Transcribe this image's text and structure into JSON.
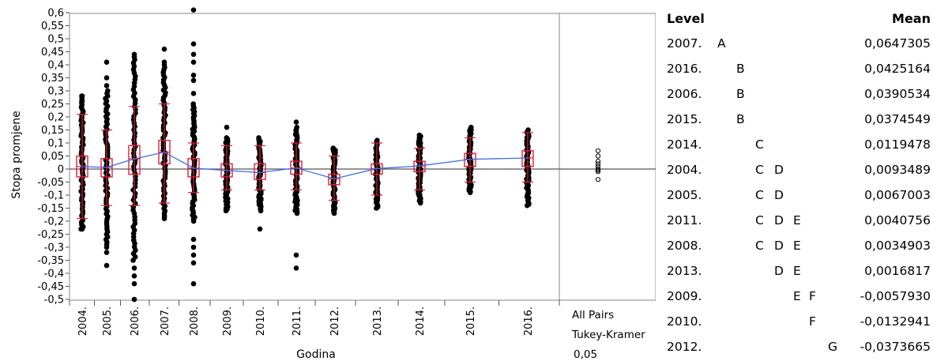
{
  "chart_data": {
    "type": "scatter",
    "subtype": "oneway-analysis",
    "xlabel": "Godina",
    "ylabel": "Stopa promjene",
    "ylim": [
      -0.52,
      0.62
    ],
    "yticks": [
      "0,6",
      "0,55",
      "0,5",
      "0,45",
      "0,4",
      "0,35",
      "0,3",
      "0,25",
      "0,2",
      "0,15",
      "0,1",
      "0,05",
      "0",
      "-0,05",
      "-0,1",
      "-0,15",
      "-0,2",
      "-0,25",
      "-0,3",
      "-0,35",
      "-0,4",
      "-0,45",
      "-0,5"
    ],
    "categories": [
      "2004.",
      "2005.",
      "2006.",
      "2007.",
      "2008.",
      "2009.",
      "2010.",
      "2011.",
      "2012.",
      "2013.",
      "2014.",
      "2015.",
      "2016."
    ],
    "groups": [
      {
        "label": "2004.",
        "mean": 0.0093489,
        "box_low": -0.03,
        "box_high": 0.05,
        "ci_low": -0.19,
        "ci_high": 0.21,
        "data_min": -0.23,
        "data_max": 0.28,
        "outliers": [
          0.28,
          0.26,
          -0.23
        ]
      },
      {
        "label": "2005.",
        "mean": 0.0067003,
        "box_low": -0.03,
        "box_high": 0.04,
        "ci_low": -0.14,
        "ci_high": 0.15,
        "data_min": -0.29,
        "data_max": 0.3,
        "outliers": [
          0.41,
          0.35,
          0.32,
          -0.3,
          -0.32,
          -0.37
        ]
      },
      {
        "label": "2006.",
        "mean": 0.0390534,
        "box_low": -0.02,
        "box_high": 0.09,
        "ci_low": -0.14,
        "ci_high": 0.24,
        "data_min": -0.35,
        "data_max": 0.42,
        "outliers": [
          0.44,
          0.43,
          -0.38,
          -0.41,
          -0.44,
          -0.5
        ]
      },
      {
        "label": "2007.",
        "mean": 0.0647305,
        "box_low": 0.02,
        "box_high": 0.11,
        "ci_low": -0.13,
        "ci_high": 0.25,
        "data_min": -0.19,
        "data_max": 0.39,
        "outliers": [
          0.46,
          0.41,
          0.4
        ]
      },
      {
        "label": "2008.",
        "mean": 0.0034903,
        "box_low": -0.03,
        "box_high": 0.04,
        "ci_low": -0.09,
        "ci_high": 0.1,
        "data_min": -0.2,
        "data_max": 0.25,
        "outliers": [
          0.61,
          0.48,
          0.44,
          0.41,
          0.36,
          0.34,
          0.29,
          -0.27,
          -0.3,
          -0.33,
          -0.36,
          -0.44
        ]
      },
      {
        "label": "2009.",
        "mean": -0.005793,
        "box_low": -0.03,
        "box_high": 0.02,
        "ci_low": -0.08,
        "ci_high": 0.09,
        "data_min": -0.16,
        "data_max": 0.12,
        "outliers": [
          0.16
        ]
      },
      {
        "label": "2010.",
        "mean": -0.0132941,
        "box_low": -0.04,
        "box_high": 0.02,
        "ci_low": -0.08,
        "ci_high": 0.09,
        "data_min": -0.16,
        "data_max": 0.12,
        "outliers": [
          -0.23
        ]
      },
      {
        "label": "2011.",
        "mean": 0.0040756,
        "box_low": -0.02,
        "box_high": 0.03,
        "ci_low": -0.08,
        "ci_high": 0.1,
        "data_min": -0.17,
        "data_max": 0.16,
        "outliers": [
          0.18,
          -0.33,
          -0.38
        ]
      },
      {
        "label": "2012.",
        "mean": -0.0373665,
        "box_low": -0.06,
        "box_high": -0.02,
        "ci_low": -0.12,
        "ci_high": 0.05,
        "data_min": -0.17,
        "data_max": 0.08,
        "outliers": []
      },
      {
        "label": "2013.",
        "mean": 0.0016817,
        "box_low": -0.02,
        "box_high": 0.02,
        "ci_low": -0.1,
        "ci_high": 0.1,
        "data_min": -0.15,
        "data_max": 0.11,
        "outliers": []
      },
      {
        "label": "2014.",
        "mean": 0.0119478,
        "box_low": -0.01,
        "box_high": 0.03,
        "ci_low": -0.08,
        "ci_high": 0.08,
        "data_min": -0.13,
        "data_max": 0.13,
        "outliers": []
      },
      {
        "label": "2015.",
        "mean": 0.0374549,
        "box_low": 0.01,
        "box_high": 0.06,
        "ci_low": -0.05,
        "ci_high": 0.12,
        "data_min": -0.09,
        "data_max": 0.16,
        "outliers": []
      },
      {
        "label": "2016.",
        "mean": 0.0425164,
        "box_low": 0.01,
        "box_high": 0.07,
        "ci_low": -0.05,
        "ci_high": 0.14,
        "data_min": -0.14,
        "data_max": 0.15,
        "outliers": []
      }
    ],
    "reference_line": 0,
    "side_panel": {
      "label1": "All Pairs",
      "label2": "Tukey-Kramer",
      "alpha": "0,05",
      "circles": [
        0.07,
        0.05,
        0.03,
        0.02,
        0.01,
        0.0,
        -0.005,
        -0.01,
        -0.04
      ]
    },
    "colors": {
      "points": "#000000",
      "box": "#e0203a",
      "mean_line": "#3d6fe8",
      "axis": "#555555",
      "reference": "#555555"
    }
  },
  "table": {
    "header": {
      "level": "Level",
      "mean": "Mean"
    },
    "rows": [
      {
        "level": "2007.",
        "letters": [
          "A"
        ],
        "mean": "0,0647305"
      },
      {
        "level": "2016.",
        "letters": [
          "",
          "B"
        ],
        "mean": "0,0425164"
      },
      {
        "level": "2006.",
        "letters": [
          "",
          "B"
        ],
        "mean": "0,0390534"
      },
      {
        "level": "2015.",
        "letters": [
          "",
          "B"
        ],
        "mean": "0,0374549"
      },
      {
        "level": "2014.",
        "letters": [
          "",
          "",
          "C"
        ],
        "mean": "0,0119478"
      },
      {
        "level": "2004.",
        "letters": [
          "",
          "",
          "C",
          "D"
        ],
        "mean": "0,0093489"
      },
      {
        "level": "2005.",
        "letters": [
          "",
          "",
          "C",
          "D"
        ],
        "mean": "0,0067003"
      },
      {
        "level": "2011.",
        "letters": [
          "",
          "",
          "C",
          "D",
          "E"
        ],
        "mean": "0,0040756"
      },
      {
        "level": "2008.",
        "letters": [
          "",
          "",
          "C",
          "D",
          "E"
        ],
        "mean": "0,0034903"
      },
      {
        "level": "2013.",
        "letters": [
          "",
          "",
          "",
          "D",
          "E"
        ],
        "mean": "0,0016817"
      },
      {
        "level": "2009.",
        "letters": [
          "",
          "",
          "",
          "",
          "E",
          "F"
        ],
        "mean": "-0,0057930"
      },
      {
        "level": "2010.",
        "letters": [
          "",
          "",
          "",
          "",
          "",
          "F"
        ],
        "mean": "-0,0132941"
      },
      {
        "level": "2012.",
        "letters": [
          "",
          "",
          "",
          "",
          "",
          "",
          "G"
        ],
        "mean": "-0,0373665"
      }
    ]
  }
}
